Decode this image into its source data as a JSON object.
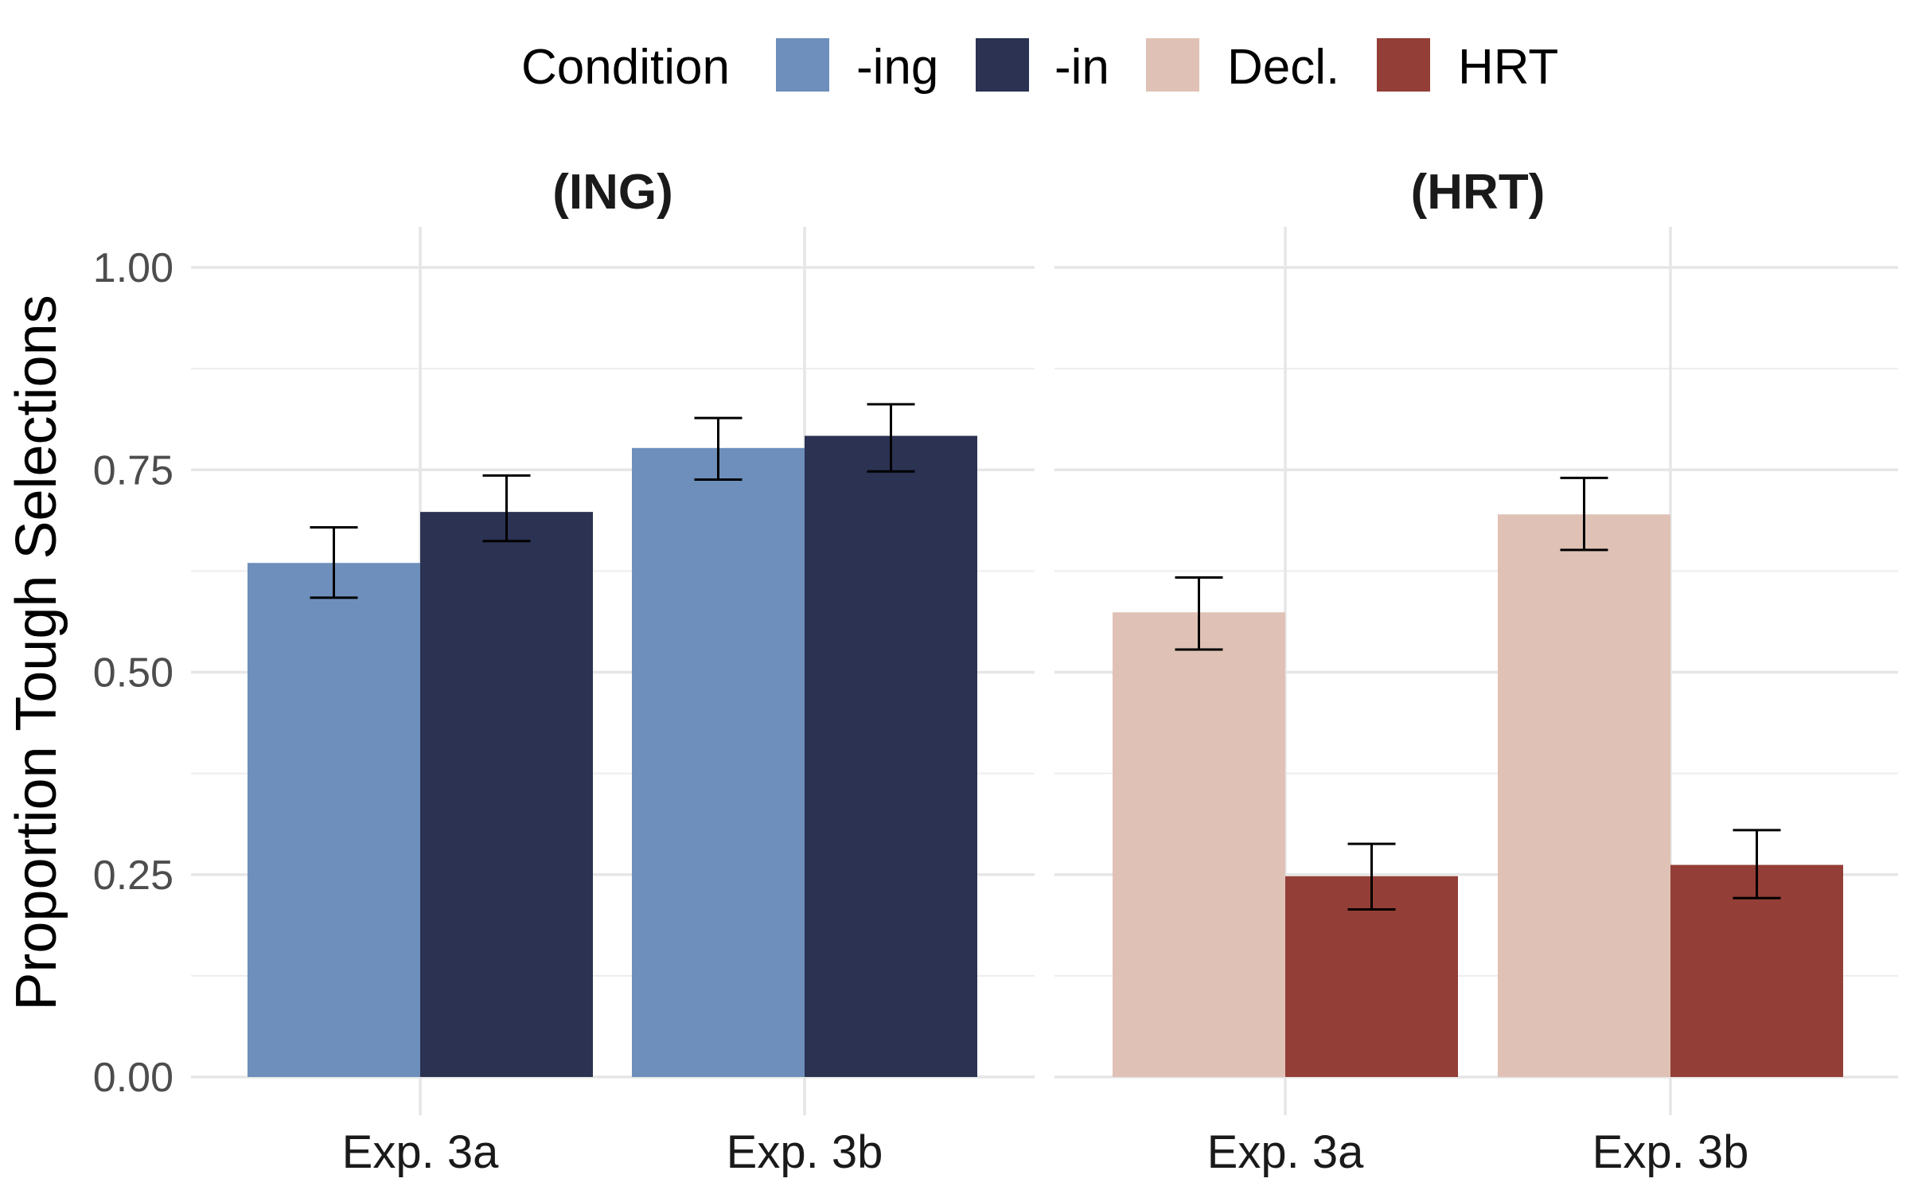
{
  "chart_data": {
    "type": "bar",
    "legend": {
      "title": "Condition",
      "position": "top",
      "entries": [
        {
          "label": "-ing",
          "color": "#6e8fbb"
        },
        {
          "label": "-in",
          "color": "#2b3252"
        },
        {
          "label": "Decl.",
          "color": "#dfc2b5"
        },
        {
          "label": "HRT",
          "color": "#933e36"
        }
      ]
    },
    "ylabel": "Proportion Tough Selections",
    "xlabel": "",
    "ylim": [
      0,
      1
    ],
    "y_ticks": [
      "0.00",
      "0.25",
      "0.50",
      "0.75",
      "1.00"
    ],
    "grid": true,
    "panels": [
      {
        "title": "(ING)",
        "categories": [
          "Exp. 3a",
          "Exp. 3b"
        ],
        "series": [
          {
            "name": "-ing",
            "color": "#6e8fbb",
            "values": [
              0.635,
              0.777
            ],
            "error_low": [
              0.592,
              0.738
            ],
            "error_high": [
              0.679,
              0.814
            ]
          },
          {
            "name": "-in",
            "color": "#2b3252",
            "values": [
              0.698,
              0.792
            ],
            "error_low": [
              0.662,
              0.748
            ],
            "error_high": [
              0.743,
              0.831
            ]
          }
        ]
      },
      {
        "title": "(HRT)",
        "categories": [
          "Exp. 3a",
          "Exp. 3b"
        ],
        "series": [
          {
            "name": "Decl.",
            "color": "#dfc2b5",
            "values": [
              0.574,
              0.695
            ],
            "error_low": [
              0.528,
              0.651
            ],
            "error_high": [
              0.617,
              0.74
            ]
          },
          {
            "name": "HRT",
            "color": "#933e36",
            "values": [
              0.248,
              0.262
            ],
            "error_low": [
              0.207,
              0.221
            ],
            "error_high": [
              0.288,
              0.305
            ]
          }
        ]
      }
    ]
  }
}
